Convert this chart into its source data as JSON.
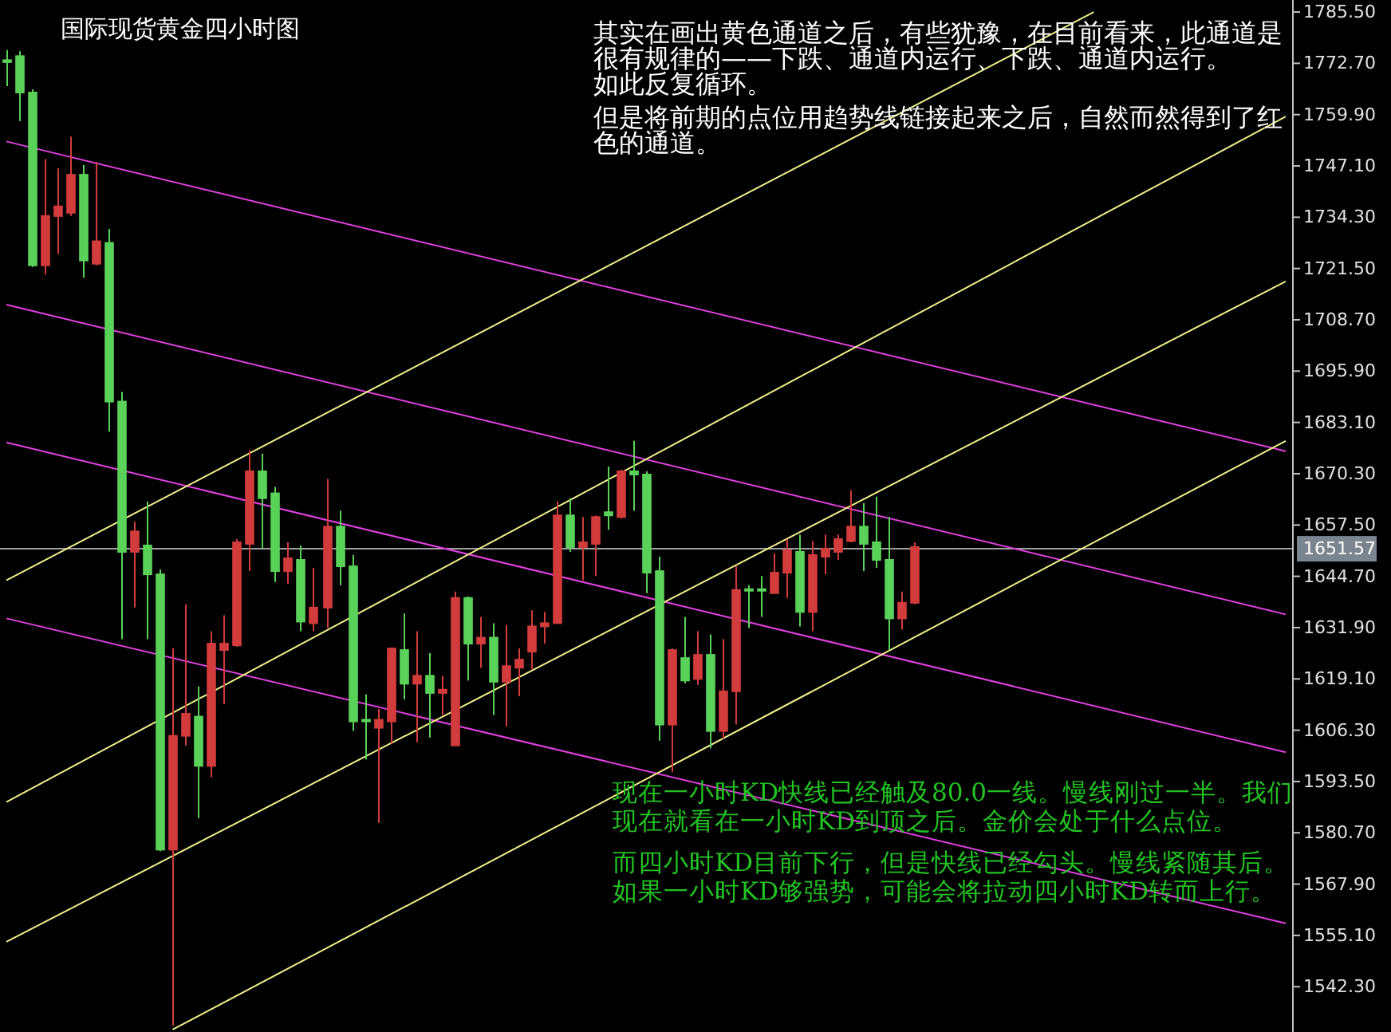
{
  "chart_data": {
    "type": "candlestick",
    "title": "国际现货黄金四小时图",
    "annotations": [
      "其实在画出黄色通道之后，有些犹豫，在目前看来，此通道是很有规律的——下跌、通道内运行、下跌、通道内运行。",
      "如此反复循环。",
      "但是将前期的点位用趋势线链接起来之后，自然而然得到了红色的通道。",
      "现在一小时KD快线已经触及80.0一线。慢线刚过一半。我们现在就看在一小时KD到顶之后。金价会处于什么点位。",
      "而四小时KD目前下行，但是快线已经勾头。慢线紧随其后。如果一小时KD够强势，可能会将拉动四小时KD转而上行。"
    ],
    "categories": [
      null,
      null,
      null,
      null,
      null,
      null,
      null,
      null,
      null,
      null,
      null,
      null,
      null,
      null,
      null,
      null,
      null,
      null,
      null,
      null,
      null,
      null,
      null,
      null,
      null,
      null,
      null,
      null,
      null,
      null,
      null,
      null,
      null,
      null,
      null,
      null,
      null,
      null,
      null,
      null,
      null,
      null,
      null,
      null,
      null,
      null,
      null,
      null,
      null,
      null,
      null,
      null,
      null,
      null,
      null,
      null,
      null,
      null,
      null,
      null,
      null,
      null,
      null,
      null,
      null,
      null,
      null,
      null,
      null,
      null,
      null,
      null,
      null,
      null,
      null,
      null,
      null,
      null,
      null,
      null,
      null,
      null,
      null,
      null,
      null,
      null,
      null,
      null,
      null,
      null,
      null,
      null,
      null,
      null,
      null,
      null,
      null,
      null,
      null,
      null,
      null
    ],
    "ohlc": [
      [
        1773.5,
        1776,
        1767,
        1773
      ],
      [
        1774.5,
        1775.7,
        1758.3,
        1765.4
      ],
      [
        1765.4,
        1766.2,
        1721.9,
        1722.3
      ],
      [
        1722.3,
        1748.8,
        1720.0,
        1734.6
      ],
      [
        1734.6,
        1746.5,
        1725.1,
        1737.0
      ],
      [
        1735.4,
        1754.4,
        1734.6,
        1744.9
      ],
      [
        1744.9,
        1747.3,
        1719.2,
        1723.5
      ],
      [
        1722.7,
        1748.1,
        1722.3,
        1728.3
      ],
      [
        1727.9,
        1731.4,
        1680.8,
        1688.3
      ],
      [
        1688.3,
        1690.7,
        1629.0,
        1650.8
      ],
      [
        1650.8,
        1658.3,
        1636.9,
        1655.9
      ],
      [
        1652.4,
        1663.4,
        1629.0,
        1645.2
      ],
      [
        1645.2,
        1646.4,
        1576.1,
        1576.5
      ],
      [
        1576.5,
        1626.7,
        1532.6,
        1604.9
      ],
      [
        1604.9,
        1637.7,
        1602.5,
        1610.4
      ],
      [
        1609.7,
        1617.2,
        1584.4,
        1597.4
      ],
      [
        1597.4,
        1631.0,
        1594.6,
        1627.9
      ],
      [
        1626.3,
        1635.0,
        1612.8,
        1627.9
      ],
      [
        1627.5,
        1654.0,
        1627.1,
        1653.2
      ],
      [
        1652.8,
        1676.1,
        1646.0,
        1670.9
      ],
      [
        1670.9,
        1675.3,
        1651.6,
        1664.2
      ],
      [
        1665.4,
        1667.0,
        1643.3,
        1646.0
      ],
      [
        1646.0,
        1653.2,
        1642.9,
        1649.2
      ],
      [
        1648.8,
        1652.4,
        1631.0,
        1633.4
      ],
      [
        1633.0,
        1646.8,
        1631.0,
        1636.9
      ],
      [
        1636.9,
        1669.0,
        1631.8,
        1657.1
      ],
      [
        1657.1,
        1661.1,
        1642.5,
        1647.2
      ],
      [
        1647.2,
        1650.0,
        1606.1,
        1608.5
      ],
      [
        1608.9,
        1615.2,
        1599.0,
        1608.5
      ],
      [
        1606.9,
        1611.6,
        1583.2,
        1608.9
      ],
      [
        1608.5,
        1626.7,
        1603.0,
        1626.7
      ],
      [
        1626.3,
        1635.4,
        1614.0,
        1617.9
      ],
      [
        1617.9,
        1631.0,
        1603.3,
        1619.9
      ],
      [
        1619.9,
        1625.5,
        1604.5,
        1615.6
      ],
      [
        1615.6,
        1619.9,
        1610.1,
        1616.4
      ],
      [
        1602.5,
        1640.9,
        1602.5,
        1639.3
      ],
      [
        1639.3,
        1639.7,
        1618.7,
        1627.9
      ],
      [
        1627.9,
        1634.6,
        1621.9,
        1629.4
      ],
      [
        1629.4,
        1633.0,
        1610.1,
        1618.4
      ],
      [
        1618.4,
        1632.6,
        1607.3,
        1622.3
      ],
      [
        1621.9,
        1626.7,
        1614.8,
        1623.9
      ],
      [
        1625.9,
        1636.2,
        1621.5,
        1632.2
      ],
      [
        1632.2,
        1635.8,
        1627.9,
        1633.0
      ],
      [
        1633.0,
        1663.4,
        1633.0,
        1659.9
      ],
      [
        1659.9,
        1664.2,
        1650.8,
        1652.0
      ],
      [
        1652.0,
        1659.5,
        1643.7,
        1653.2
      ],
      [
        1652.8,
        1659.9,
        1644.8,
        1659.5
      ],
      [
        1660.7,
        1672.1,
        1656.3,
        1659.9
      ],
      [
        1659.5,
        1671.3,
        1659.1,
        1670.9
      ],
      [
        1670.9,
        1678.5,
        1661.1,
        1670.1
      ],
      [
        1670.1,
        1670.9,
        1640.5,
        1645.6
      ],
      [
        1646.0,
        1649.6,
        1603.7,
        1607.7
      ],
      [
        1607.7,
        1626.7,
        1595.8,
        1626.3
      ],
      [
        1624.3,
        1634.6,
        1618.0,
        1618.7
      ],
      [
        1619.1,
        1631.0,
        1617.6,
        1625.1
      ],
      [
        1625.1,
        1630.2,
        1601.8,
        1606.1
      ],
      [
        1606.1,
        1629.0,
        1604.1,
        1616.0
      ],
      [
        1616.0,
        1647.2,
        1607.7,
        1641.3
      ],
      [
        1641.5,
        1642.5,
        1631.8,
        1641.3
      ],
      [
        1641.5,
        1644.8,
        1634.6,
        1641.3
      ],
      [
        1640.5,
        1650.4,
        1640.5,
        1645.6
      ],
      [
        1645.6,
        1654.0,
        1639.3,
        1651.2
      ],
      [
        1650.8,
        1655.1,
        1632.2,
        1635.8
      ],
      [
        1635.8,
        1653.5,
        1631.0,
        1650.0
      ],
      [
        1649.6,
        1655.1,
        1645.2,
        1651.6
      ],
      [
        1650.8,
        1655.1,
        1648.8,
        1654.0
      ],
      [
        1653.5,
        1666.2,
        1653.2,
        1657.1
      ],
      [
        1657.1,
        1663.0,
        1646.0,
        1652.8
      ],
      [
        1653.2,
        1664.6,
        1646.8,
        1648.8
      ],
      [
        1648.8,
        1659.5,
        1626.3,
        1634.2
      ],
      [
        1634.2,
        1640.9,
        1631.4,
        1638.1
      ],
      [
        1638.1,
        1653.2,
        1637.7,
        1652.0
      ],
      null,
      null,
      null,
      null,
      null,
      null,
      null,
      null,
      null,
      null,
      null,
      null,
      null,
      null,
      null,
      null,
      null,
      null,
      null,
      null,
      null,
      null,
      null,
      null,
      null,
      null,
      null,
      null,
      null
    ],
    "colors": [
      "#5ad25a",
      "#5ad25a",
      "#5ad25a",
      "#d23c3c",
      "#d23c3c",
      "#d23c3c",
      "#5ad25a",
      "#d23c3c",
      "#5ad25a",
      "#5ad25a",
      "#d23c3c",
      "#5ad25a",
      "#5ad25a",
      "#d23c3c",
      "#d23c3c",
      "#5ad25a",
      "#d23c3c",
      "#d23c3c",
      "#d23c3c",
      "#d23c3c",
      "#5ad25a",
      "#5ad25a",
      "#d23c3c",
      "#5ad25a",
      "#d23c3c",
      "#d23c3c",
      "#5ad25a",
      "#5ad25a",
      "#5ad25a",
      "#d23c3c",
      "#d23c3c",
      "#5ad25a",
      "#d23c3c",
      "#5ad25a",
      "#d23c3c",
      "#d23c3c",
      "#5ad25a",
      "#d23c3c",
      "#5ad25a",
      "#d23c3c",
      "#d23c3c",
      "#d23c3c",
      "#d23c3c",
      "#d23c3c",
      "#5ad25a",
      "#d23c3c",
      "#d23c3c",
      "#5ad25a",
      "#d23c3c",
      "#5ad25a",
      "#5ad25a",
      "#5ad25a",
      "#d23c3c",
      "#5ad25a",
      "#d23c3c",
      "#5ad25a",
      "#d23c3c",
      "#d23c3c",
      "#5ad25a",
      "#5ad25a",
      "#d23c3c",
      "#d23c3c",
      "#5ad25a",
      "#d23c3c",
      "#d23c3c",
      "#d23c3c",
      "#d23c3c",
      "#5ad25a",
      "#5ad25a",
      "#5ad25a",
      "#d23c3c",
      "#d23c3c",
      null,
      null,
      null,
      null,
      null,
      null,
      null,
      null,
      null,
      null,
      null,
      null,
      null,
      null,
      null,
      null,
      null,
      null,
      null,
      null,
      null,
      null,
      null,
      null,
      null,
      null,
      null,
      null,
      null
    ],
    "series": [
      {
        "type": "line",
        "values": [
          1753.2,
          null,
          null,
          null,
          null,
          null,
          null,
          null,
          null,
          null,
          null,
          null,
          null,
          null,
          null,
          null,
          null,
          null,
          null,
          null,
          null,
          null,
          null,
          null,
          null,
          null,
          null,
          null,
          null,
          null,
          null,
          null,
          null,
          null,
          null,
          null,
          null,
          null,
          null,
          null,
          null,
          null,
          null,
          null,
          null,
          null,
          null,
          null,
          null,
          null,
          null,
          null,
          null,
          null,
          null,
          null,
          null,
          null,
          null,
          null,
          null,
          null,
          null,
          null,
          null,
          null,
          null,
          null,
          null,
          null,
          null,
          null,
          null,
          null,
          null,
          null,
          null,
          null,
          null,
          null,
          null,
          null,
          null,
          null,
          null,
          null,
          null,
          null,
          null,
          null,
          null,
          null,
          null,
          null,
          null,
          null,
          null,
          null,
          null,
          null,
          1675.9
        ],
        "color": "#e040e0"
      },
      {
        "type": "line",
        "values": [
          1712.5,
          null,
          null,
          null,
          null,
          null,
          null,
          null,
          null,
          null,
          null,
          null,
          null,
          null,
          null,
          null,
          null,
          null,
          null,
          null,
          null,
          null,
          null,
          null,
          null,
          null,
          null,
          null,
          null,
          null,
          null,
          null,
          null,
          null,
          null,
          null,
          null,
          null,
          null,
          null,
          null,
          null,
          null,
          null,
          null,
          null,
          null,
          null,
          null,
          null,
          null,
          null,
          null,
          null,
          null,
          null,
          null,
          null,
          null,
          null,
          null,
          null,
          null,
          null,
          null,
          null,
          null,
          null,
          null,
          null,
          null,
          null,
          null,
          null,
          null,
          null,
          null,
          null,
          null,
          null,
          null,
          null,
          null,
          null,
          null,
          null,
          null,
          null,
          null,
          null,
          null,
          null,
          null,
          null,
          null,
          null,
          null,
          null,
          null,
          null,
          1635.2
        ],
        "color": "#e040e0"
      },
      {
        "type": "line",
        "values": [
          1678.1,
          null,
          null,
          null,
          null,
          null,
          null,
          null,
          null,
          null,
          null,
          null,
          null,
          null,
          null,
          null,
          null,
          null,
          null,
          null,
          null,
          null,
          null,
          null,
          null,
          null,
          null,
          null,
          null,
          null,
          null,
          null,
          null,
          null,
          null,
          null,
          null,
          null,
          null,
          null,
          null,
          null,
          null,
          null,
          null,
          null,
          null,
          null,
          null,
          null,
          null,
          null,
          null,
          null,
          null,
          null,
          null,
          null,
          null,
          null,
          null,
          null,
          null,
          null,
          null,
          null,
          null,
          null,
          null,
          null,
          null,
          null,
          null,
          null,
          null,
          null,
          null,
          null,
          null,
          null,
          null,
          null,
          null,
          null,
          null,
          null,
          null,
          null,
          null,
          null,
          null,
          null,
          null,
          null,
          null,
          null,
          null,
          null,
          null,
          null,
          1600.8
        ],
        "color": "#e040e0"
      },
      {
        "type": "line",
        "values": [
          1634.2,
          null,
          null,
          null,
          null,
          null,
          null,
          null,
          null,
          null,
          null,
          null,
          null,
          null,
          null,
          null,
          null,
          null,
          null,
          null,
          null,
          null,
          null,
          null,
          null,
          null,
          null,
          null,
          null,
          null,
          null,
          null,
          null,
          null,
          null,
          null,
          null,
          null,
          null,
          null,
          null,
          null,
          null,
          null,
          null,
          null,
          null,
          null,
          null,
          null,
          null,
          null,
          null,
          null,
          null,
          null,
          null,
          null,
          null,
          null,
          null,
          null,
          null,
          null,
          null,
          null,
          null,
          null,
          null,
          null,
          null,
          null,
          null,
          null,
          null,
          null,
          null,
          null,
          null,
          null,
          null,
          null,
          null,
          null,
          null,
          null,
          null,
          null,
          null,
          null,
          null,
          null,
          null,
          null,
          null,
          null,
          null,
          null,
          null,
          null,
          1558.1
        ],
        "color": "#e040e0"
      },
      {
        "type": "line",
        "values": [
          1643.7,
          null,
          null,
          null,
          null,
          null,
          null,
          null,
          null,
          null,
          null,
          null,
          null,
          null,
          null,
          null,
          null,
          null,
          null,
          null,
          null,
          null,
          null,
          null,
          null,
          null,
          null,
          null,
          null,
          null,
          null,
          null,
          null,
          null,
          null,
          null,
          null,
          null,
          null,
          null,
          null,
          null,
          null,
          null,
          null,
          null,
          null,
          null,
          null,
          null,
          null,
          null,
          null,
          null,
          null,
          null,
          null,
          null,
          null,
          null,
          null,
          null,
          null,
          null,
          null,
          null,
          null,
          null,
          null,
          null,
          null,
          null,
          null,
          null,
          null,
          null,
          null,
          null,
          null,
          null,
          null,
          null,
          null,
          null,
          null,
          1785.5,
          null,
          null,
          null,
          null,
          null,
          null,
          null,
          null,
          null,
          null,
          null,
          null,
          null,
          null,
          null
        ],
        "color": "#f0f08c"
      },
      {
        "type": "line",
        "values": [
          1588.4,
          null,
          null,
          null,
          null,
          null,
          null,
          null,
          null,
          null,
          null,
          null,
          null,
          null,
          null,
          null,
          null,
          null,
          null,
          null,
          null,
          null,
          null,
          null,
          null,
          null,
          null,
          null,
          null,
          null,
          null,
          null,
          null,
          null,
          null,
          null,
          null,
          null,
          null,
          null,
          null,
          null,
          null,
          null,
          null,
          null,
          null,
          null,
          null,
          null,
          null,
          null,
          null,
          null,
          null,
          null,
          null,
          null,
          null,
          null,
          null,
          null,
          null,
          null,
          null,
          null,
          null,
          null,
          null,
          null,
          null,
          null,
          null,
          null,
          null,
          null,
          null,
          null,
          null,
          null,
          null,
          null,
          null,
          null,
          null,
          null,
          null,
          null,
          null,
          null,
          null,
          null,
          null,
          null,
          null,
          null,
          null,
          null,
          null,
          null,
          1759.4
        ],
        "color": "#f0f08c"
      },
      {
        "type": "line",
        "values": [
          1553.5,
          null,
          null,
          null,
          null,
          null,
          null,
          null,
          null,
          null,
          null,
          null,
          null,
          null,
          null,
          null,
          null,
          null,
          null,
          null,
          null,
          null,
          null,
          null,
          null,
          null,
          null,
          null,
          null,
          null,
          null,
          null,
          null,
          null,
          null,
          null,
          null,
          null,
          null,
          null,
          null,
          null,
          null,
          null,
          null,
          null,
          null,
          null,
          null,
          null,
          null,
          null,
          null,
          null,
          null,
          null,
          null,
          null,
          null,
          null,
          null,
          null,
          null,
          null,
          null,
          null,
          null,
          null,
          null,
          null,
          null,
          null,
          null,
          null,
          null,
          null,
          null,
          null,
          null,
          null,
          null,
          null,
          null,
          null,
          null,
          null,
          null,
          null,
          null,
          null,
          null,
          null,
          null,
          null,
          null,
          null,
          null,
          null,
          null,
          null,
          1718.3
        ],
        "color": "#f0f08c"
      },
      {
        "type": "line",
        "values": [
          null,
          null,
          null,
          null,
          null,
          null,
          null,
          null,
          null,
          null,
          null,
          null,
          null,
          1531.6,
          null,
          null,
          null,
          null,
          null,
          null,
          null,
          null,
          null,
          null,
          null,
          null,
          null,
          null,
          null,
          null,
          null,
          null,
          null,
          null,
          null,
          null,
          null,
          null,
          null,
          null,
          null,
          null,
          null,
          null,
          null,
          null,
          null,
          null,
          null,
          null,
          null,
          null,
          null,
          null,
          null,
          null,
          null,
          null,
          null,
          null,
          null,
          null,
          null,
          null,
          null,
          null,
          null,
          null,
          null,
          null,
          null,
          null,
          null,
          null,
          null,
          null,
          null,
          null,
          null,
          null,
          null,
          null,
          null,
          null,
          null,
          null,
          null,
          null,
          null,
          null,
          null,
          null,
          null,
          null,
          null,
          null,
          null,
          null,
          null,
          null,
          1678.5
        ],
        "color": "#f0f08c"
      }
    ],
    "ref_lines": [
      {
        "axis": "y",
        "value": 1651.57,
        "label": "1651.57",
        "color": "#a0a0a0"
      }
    ],
    "ylim": [
      1531.0,
      1788.5
    ],
    "yticks": [
      {
        "value": 1785.5,
        "label": "1785.50"
      },
      {
        "value": 1772.7,
        "label": "1772.70"
      },
      {
        "value": 1759.9,
        "label": "1759.90"
      },
      {
        "value": 1747.1,
        "label": "1747.10"
      },
      {
        "value": 1734.3,
        "label": "1734.30"
      },
      {
        "value": 1721.5,
        "label": "1721.50"
      },
      {
        "value": 1708.7,
        "label": "1708.70"
      },
      {
        "value": 1695.9,
        "label": "1695.90"
      },
      {
        "value": 1683.1,
        "label": "1683.10"
      },
      {
        "value": 1670.3,
        "label": "1670.30"
      },
      {
        "value": 1657.5,
        "label": "1657.50"
      },
      {
        "value": 1644.7,
        "label": "1644.70"
      },
      {
        "value": 1631.9,
        "label": "1631.90"
      },
      {
        "value": 1619.1,
        "label": "1619.10"
      },
      {
        "value": 1606.3,
        "label": "1606.30"
      },
      {
        "value": 1593.5,
        "label": "1593.50"
      },
      {
        "value": 1580.7,
        "label": "1580.70"
      },
      {
        "value": 1567.9,
        "label": "1567.90"
      },
      {
        "value": 1555.1,
        "label": "1555.10"
      },
      {
        "value": 1542.3,
        "label": "1542.30"
      }
    ],
    "tick_labels": "y"
  }
}
